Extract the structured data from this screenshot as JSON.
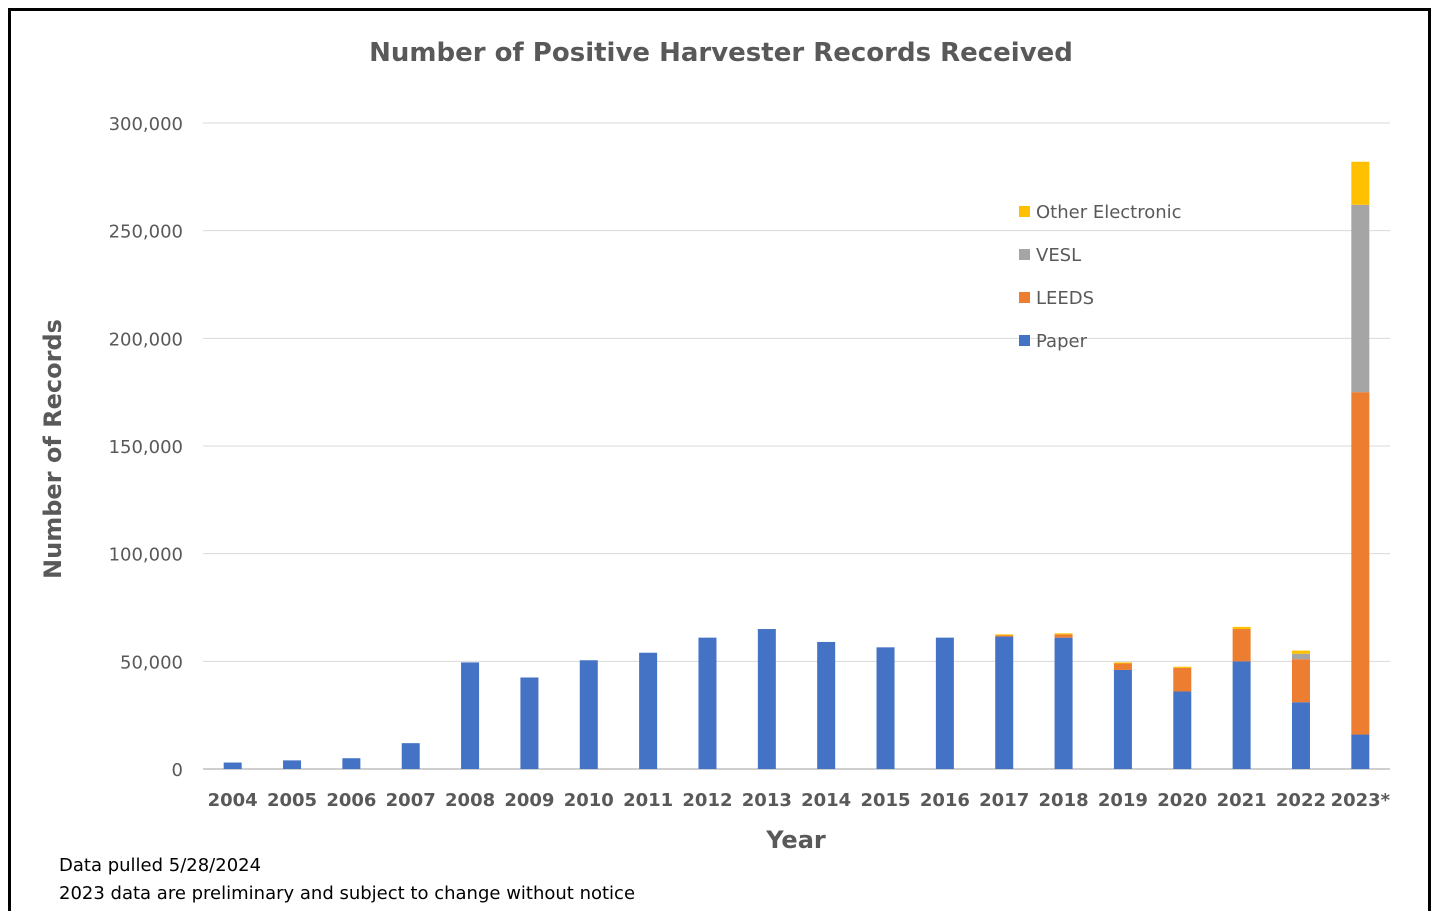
{
  "notes": {
    "line1": "Data pulled 5/28/2024",
    "line2": "2023 data are preliminary and subject to change without notice"
  },
  "chart_data": {
    "type": "bar",
    "stacked": true,
    "title": "Number of Positive Harvester Records Received",
    "xlabel": "Year",
    "ylabel": "Number of Records",
    "ylim": [
      0,
      300000
    ],
    "yticks": [
      0,
      50000,
      100000,
      150000,
      200000,
      250000,
      300000
    ],
    "ytick_labels": [
      "0",
      "50,000",
      "100,000",
      "150,000",
      "200,000",
      "250,000",
      "300,000"
    ],
    "grid": true,
    "legend_position": "top-right",
    "categories": [
      "2004",
      "2005",
      "2006",
      "2007",
      "2008",
      "2009",
      "2010",
      "2011",
      "2012",
      "2013",
      "2014",
      "2015",
      "2016",
      "2017",
      "2018",
      "2019",
      "2020",
      "2021",
      "2022",
      "2023*"
    ],
    "series": [
      {
        "name": "Paper",
        "color": "#4472C4",
        "values": [
          3000,
          4000,
          5000,
          12000,
          49500,
          42500,
          50500,
          54000,
          61000,
          65000,
          59000,
          56500,
          61000,
          61500,
          61000,
          46000,
          36000,
          50000,
          31000,
          16000
        ]
      },
      {
        "name": "LEEDS",
        "color": "#ED7D31",
        "values": [
          0,
          0,
          0,
          0,
          0,
          0,
          0,
          0,
          0,
          0,
          0,
          0,
          0,
          500,
          1500,
          3000,
          11000,
          15000,
          20000,
          159000
        ]
      },
      {
        "name": "VESL",
        "color": "#A5A5A5",
        "values": [
          0,
          0,
          0,
          0,
          0,
          0,
          0,
          0,
          0,
          0,
          0,
          0,
          0,
          0,
          0,
          0,
          0,
          0,
          2500,
          87000
        ]
      },
      {
        "name": "Other Electronic",
        "color": "#FFC000",
        "values": [
          0,
          0,
          0,
          0,
          0,
          0,
          0,
          0,
          0,
          0,
          0,
          0,
          0,
          500,
          500,
          500,
          500,
          1000,
          1500,
          20000
        ]
      }
    ]
  }
}
